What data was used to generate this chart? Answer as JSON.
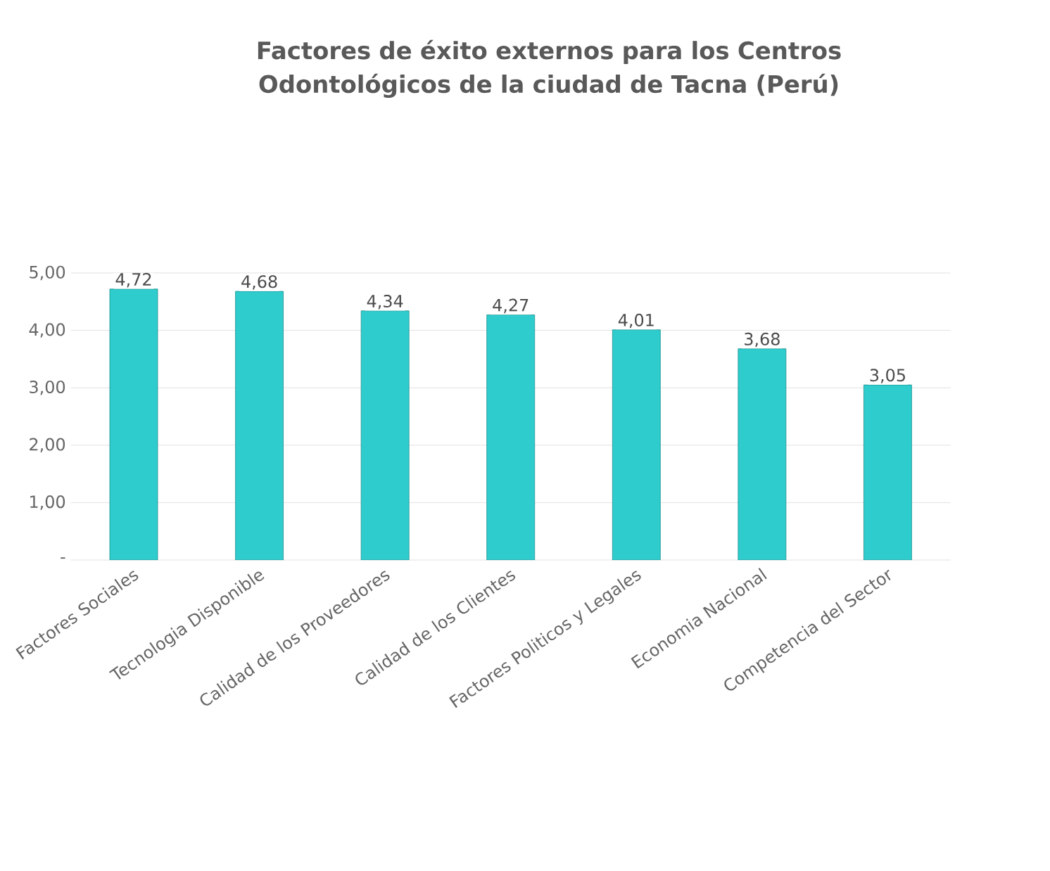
{
  "chart_data": {
    "type": "bar",
    "title": "Factores de éxito externos para los Centros Odontológicos de la ciudad de Tacna (Perú)",
    "categories": [
      "Factores Sociales",
      "Tecnologia Disponible",
      "Calidad de los Proveedores",
      "Calidad de los Clientes",
      "Factores Politicos y Legales",
      "Economia Nacional",
      "Competencia del Sector"
    ],
    "values": [
      4.72,
      4.68,
      4.34,
      4.27,
      4.01,
      3.68,
      3.05
    ],
    "value_labels": [
      "4,72",
      "4,68",
      "4,34",
      "4,27",
      "4,01",
      "3,68",
      "3,05"
    ],
    "color": "#2ecccc",
    "ylim": [
      0,
      5
    ],
    "yticks": [
      {
        "value": 0,
        "label": "-"
      },
      {
        "value": 1,
        "label": "1,00"
      },
      {
        "value": 2,
        "label": "2,00"
      },
      {
        "value": 3,
        "label": "3,00"
      },
      {
        "value": 4,
        "label": "4,00"
      },
      {
        "value": 5,
        "label": "5,00"
      }
    ],
    "grid": "y"
  }
}
